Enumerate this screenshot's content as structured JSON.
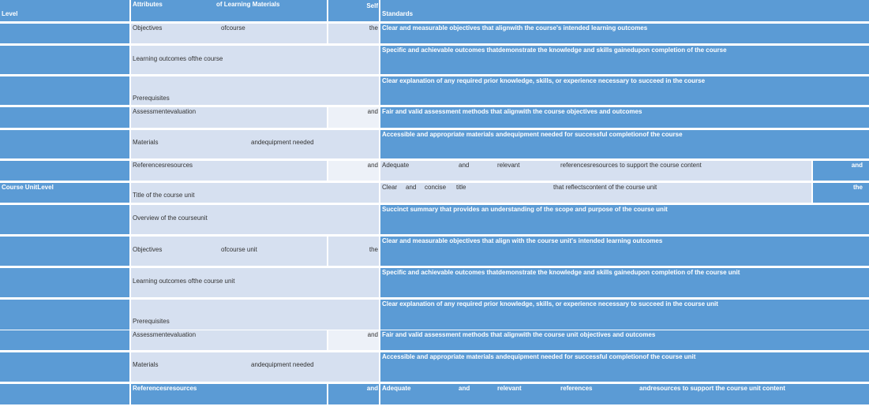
{
  "header": {
    "level": "Level",
    "attributes": "Attributes",
    "of_learning_materials": "of Learning Materials",
    "self": "Self",
    "standards": "Standards"
  },
  "course_level": [
    {
      "a1": "Objectives",
      "a2": "ofcourse",
      "conn": "the",
      "standard": "Clear  and  measurable  objectives  that  alignwith the course's intended learning outcomes"
    },
    {
      "a1": "Learning  outcomes  ofthe course",
      "standard": "Specific and achievable outcomes thatdemonstrate the knowledge and skills gainedupon completion of the course"
    },
    {
      "a1": "Prerequisites",
      "standard": "Clear explanation of any required prior knowledge, skills, or experience necessary to succeed in the course"
    },
    {
      "a1": "Assessmentevaluation",
      "conn": "and",
      "standard": "Fair and valid assessment methods that alignwith the course objectives and outcomes"
    },
    {
      "a1": "Materials",
      "a2": "andequipment needed",
      "standard": "Accessible and appropriate materials andequipment needed for successful completionof the course"
    },
    {
      "a1": "Referencesresources",
      "conn": "and",
      "s1": "Adequate",
      "s2": "and",
      "s3": "relevant",
      "s4": "referencesresources to support the course content",
      "tail": "and"
    }
  ],
  "unit_level_label": "Course  UnitLevel",
  "unit_level": [
    {
      "a1": "Title of the course unit",
      "s1": "Clear",
      "s2": "and",
      "s3": "concise",
      "s4": "title",
      "s5": "that  reflectscontent of the course unit",
      "tail": "the"
    },
    {
      "a1": "Overview of the courseunit",
      "standard": "Succinct summary that provides an understanding of the scope and purpose of the course unit"
    },
    {
      "a1": "Objectives",
      "a2": "ofcourse unit",
      "conn": "the",
      "standard": "Clear and measurable objectives that align with the course unit's intended learning outcomes"
    },
    {
      "a1": "Learning  outcomes  ofthe course unit",
      "standard": "Specific and achievable outcomes thatdemonstrate the knowledge and skills gainedupon completion of the course unit"
    },
    {
      "a1": "Prerequisites",
      "standard": "Clear explanation of any required prior knowledge, skills, or experience necessary to succeed in the course unit"
    },
    {
      "a1": "Assessmentevaluation",
      "conn": "and",
      "standard": "Fair and valid assessment methods that alignwith  the course unit objectives and outcomes"
    },
    {
      "a1": "Materials",
      "a2": "andequipment needed",
      "standard": "Accessible and appropriate materials andequipment needed for successful completionof the course unit"
    },
    {
      "a1": "Referencesresources",
      "conn": "and",
      "s1": "Adequate",
      "s2": "and",
      "s3": "relevant",
      "s4": "references",
      "s5": "andresources to support the course unit content"
    }
  ]
}
